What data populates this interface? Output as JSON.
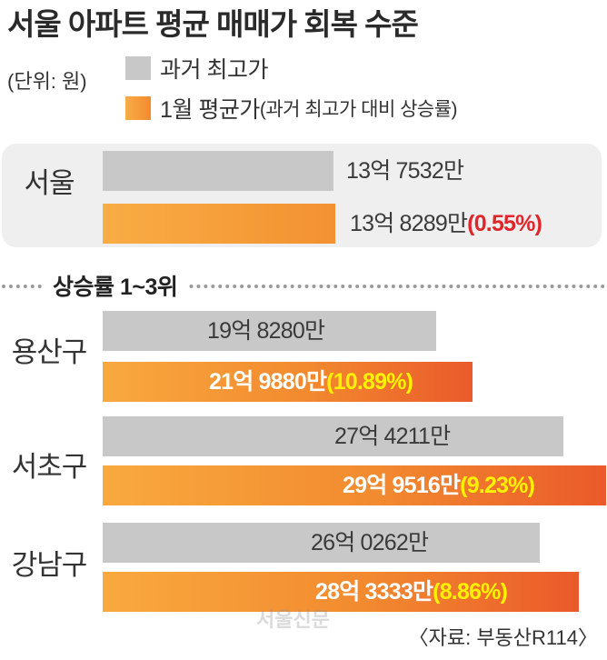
{
  "title": "서울 아파트 평균 매매가 회복 수준",
  "unit_label": "(단위: 원)",
  "legend": {
    "past_high": "과거 최고가",
    "avg_jan": "1월 평균가",
    "avg_jan_note": "(과거 최고가 대비 상승률)"
  },
  "section_label": "상승률 1~3위",
  "source": "〈자료: 부동산R114〉",
  "watermark": "서울신문",
  "colors": {
    "past_high": "#c8c8c8",
    "avg_jan": "#f28a2f",
    "pct_seoul": "#e0262b",
    "pct_district": "#fff200"
  },
  "chart_data": {
    "type": "bar",
    "orientation": "horizontal",
    "title": "서울 아파트 평균 매매가 회복 수준",
    "unit": "원",
    "series_names": [
      "과거 최고가",
      "1월 평균가"
    ],
    "groups": [
      {
        "name": "서울",
        "past_high": 1375320000,
        "past_high_label": "13억 7532만",
        "avg_jan": 1382890000,
        "avg_jan_label": "13억 8289만",
        "pct_label": "(0.55%)"
      },
      {
        "name": "용산구",
        "past_high": 1982800000,
        "past_high_label": "19억 8280만",
        "avg_jan": 2198800000,
        "avg_jan_label": "21억 9880만",
        "pct_label": "(10.89%)"
      },
      {
        "name": "서초구",
        "past_high": 2742110000,
        "past_high_label": "27억 4211만",
        "avg_jan": 2995160000,
        "avg_jan_label": "29억 9516만",
        "pct_label": "(9.23%)"
      },
      {
        "name": "강남구",
        "past_high": 2602620000,
        "past_high_label": "26억 0262만",
        "avg_jan": 2833330000,
        "avg_jan_label": "28억 3333만",
        "pct_label": "(8.86%)"
      }
    ]
  }
}
